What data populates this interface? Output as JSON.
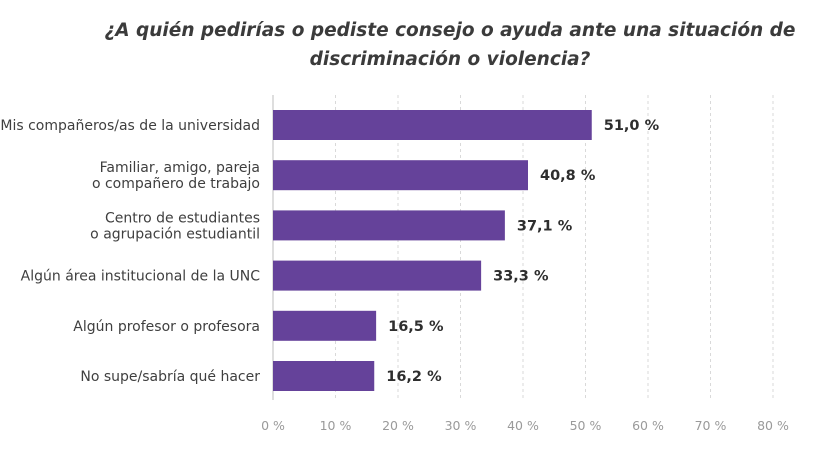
{
  "chart_data": {
    "type": "bar",
    "orientation": "horizontal",
    "title": "¿A quién pedirías o pediste consejo o ayuda ante una situación de discriminación o violencia?",
    "categories": [
      [
        "Mis compañeros/as de la universidad"
      ],
      [
        "Familiar, amigo, pareja",
        "o compañero de trabajo"
      ],
      [
        "Centro de estudiantes",
        "o agrupación estudiantil"
      ],
      [
        "Algún área institucional de la UNC"
      ],
      [
        "Algún profesor o profesora"
      ],
      [
        "No supe/sabría qué hacer"
      ]
    ],
    "values": [
      51.0,
      40.8,
      37.1,
      33.3,
      16.5,
      16.2
    ],
    "value_labels": [
      "51,0 %",
      "40,8 %",
      "37,1 %",
      "33,3 %",
      "16,5 %",
      "16,2 %"
    ],
    "x_ticks": [
      0,
      10,
      20,
      30,
      40,
      50,
      60,
      70,
      80
    ],
    "x_tick_labels": [
      "0 %",
      "10 %",
      "20 %",
      "30 %",
      "40 %",
      "50 %",
      "60 %",
      "70 %",
      "80 %"
    ],
    "xlim": [
      0,
      80
    ],
    "grid": "vertical dashed",
    "bar_color": "#65429a",
    "xlabel": "",
    "ylabel": ""
  }
}
